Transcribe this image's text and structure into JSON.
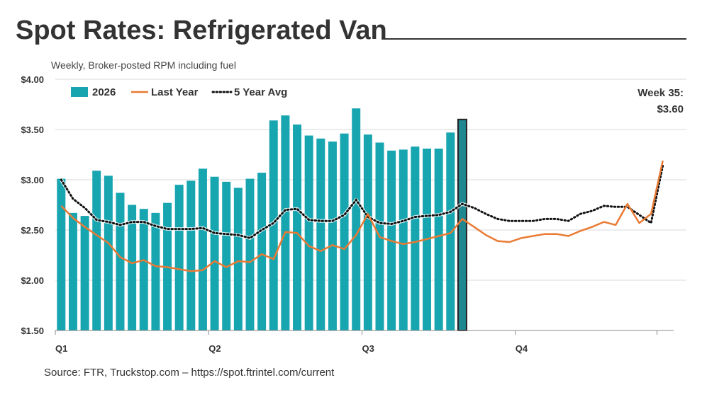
{
  "title": "Spot Rates: Refrigerated Van",
  "subtitle": "Weekly, Broker-posted RPM including fuel",
  "source": "Source: FTR, Truckstop.com – https://spot.ftrintel.com/current",
  "colors": {
    "bars": "#17a5b0",
    "highlight_bar": "#1e8790",
    "last_year": "#ea7a33",
    "avg": "#111111",
    "grid": "#d9d9d9",
    "text": "#333333"
  },
  "chart_data": {
    "type": "bar",
    "ylim": [
      1.5,
      4.0
    ],
    "yticks": [
      "$1.50",
      "$2.00",
      "$2.50",
      "$3.00",
      "$3.50",
      "$4.00"
    ],
    "ytick_values": [
      1.5,
      2.0,
      2.5,
      3.0,
      3.5,
      4.0
    ],
    "xticks": [
      "Q1",
      "Q2",
      "Q3",
      "Q4"
    ],
    "xtick_weeks": [
      1,
      14,
      27,
      40
    ],
    "weeks_total": 52,
    "grid": true,
    "legend_position": "top-left",
    "series": [
      {
        "name": "2026",
        "kind": "bar",
        "values": [
          3.01,
          2.67,
          2.64,
          3.09,
          3.04,
          2.87,
          2.75,
          2.71,
          2.67,
          2.77,
          2.95,
          2.99,
          3.11,
          3.03,
          2.98,
          2.92,
          3.01,
          3.07,
          3.59,
          3.64,
          3.55,
          3.44,
          3.41,
          3.38,
          3.46,
          3.71,
          3.45,
          3.37,
          3.29,
          3.3,
          3.33,
          3.31,
          3.31,
          3.47,
          3.6
        ]
      },
      {
        "name": "Last Year",
        "kind": "line",
        "values": [
          2.74,
          2.62,
          2.53,
          2.45,
          2.37,
          2.23,
          2.17,
          2.2,
          2.14,
          2.13,
          2.11,
          2.09,
          2.1,
          2.19,
          2.13,
          2.19,
          2.18,
          2.26,
          2.21,
          2.48,
          2.47,
          2.34,
          2.29,
          2.35,
          2.31,
          2.45,
          2.66,
          2.43,
          2.39,
          2.36,
          2.38,
          2.41,
          2.44,
          2.47,
          2.61,
          2.53,
          2.45,
          2.39,
          2.38,
          2.42,
          2.44,
          2.46,
          2.46,
          2.44,
          2.49,
          2.53,
          2.58,
          2.55,
          2.76,
          2.57,
          2.66,
          3.19
        ]
      },
      {
        "name": "5 Year Avg",
        "kind": "line",
        "values": [
          3.0,
          2.81,
          2.72,
          2.6,
          2.58,
          2.55,
          2.58,
          2.58,
          2.54,
          2.51,
          2.51,
          2.51,
          2.52,
          2.47,
          2.46,
          2.45,
          2.42,
          2.5,
          2.57,
          2.7,
          2.71,
          2.6,
          2.59,
          2.59,
          2.65,
          2.8,
          2.63,
          2.57,
          2.56,
          2.59,
          2.63,
          2.64,
          2.65,
          2.68,
          2.76,
          2.72,
          2.66,
          2.61,
          2.59,
          2.59,
          2.59,
          2.61,
          2.61,
          2.59,
          2.66,
          2.69,
          2.74,
          2.73,
          2.73,
          2.65,
          2.57,
          3.14
        ]
      }
    ],
    "annotation": {
      "week_label": "Week 35:",
      "value_label": "$3.60",
      "week": 35
    }
  }
}
